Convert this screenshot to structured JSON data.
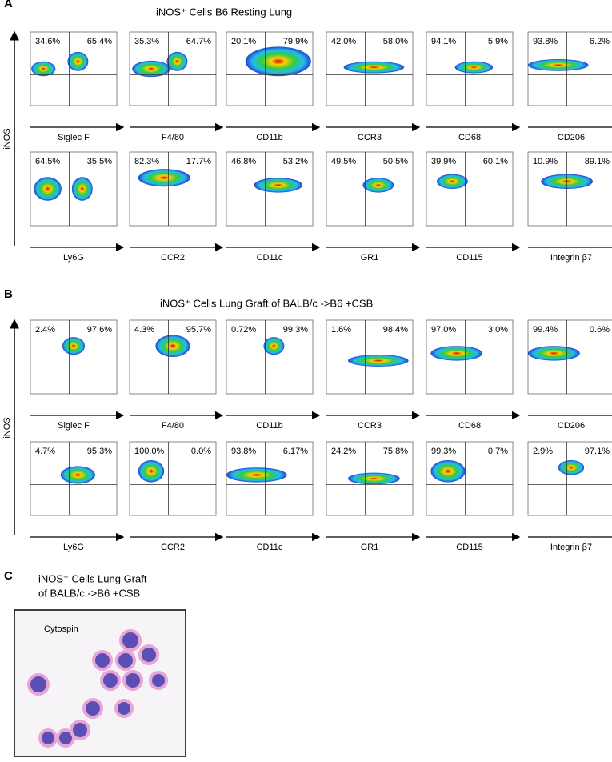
{
  "panels": [
    {
      "label": "A",
      "title": "iNOS⁺ Cells B6 Resting Lung",
      "y_label": "iNOS",
      "rows": [
        [
          {
            "marker": "Siglec F",
            "left": "34.6%",
            "right": "65.4%"
          },
          {
            "marker": "F4/80",
            "left": "35.3%",
            "right": "64.7%"
          },
          {
            "marker": "CD11b",
            "left": "20.1%",
            "right": "79.9%"
          },
          {
            "marker": "CCR3",
            "left": "42.0%",
            "right": "58.0%"
          },
          {
            "marker": "CD68",
            "left": "94.1%",
            "right": "5.9%"
          },
          {
            "marker": "CD206",
            "left": "93.8%",
            "right": "6.2%"
          }
        ],
        [
          {
            "marker": "Ly6G",
            "left": "64.5%",
            "right": "35.5%"
          },
          {
            "marker": "CCR2",
            "left": "82.3%",
            "right": "17.7%"
          },
          {
            "marker": "CD11c",
            "left": "46.8%",
            "right": "53.2%"
          },
          {
            "marker": "GR1",
            "left": "49.5%",
            "right": "50.5%"
          },
          {
            "marker": "CD115",
            "left": "39.9%",
            "right": "60.1%"
          },
          {
            "marker": "Integrin β7",
            "left": "10.9%",
            "right": "89.1%"
          }
        ]
      ]
    },
    {
      "label": "B",
      "title": "iNOS⁺ Cells Lung Graft of BALB/c ->B6 +CSB",
      "y_label": "iNOS",
      "rows": [
        [
          {
            "marker": "Siglec F",
            "left": "2.4%",
            "right": "97.6%"
          },
          {
            "marker": "F4/80",
            "left": "4.3%",
            "right": "95.7%"
          },
          {
            "marker": "CD11b",
            "left": "0.72%",
            "right": "99.3%"
          },
          {
            "marker": "CCR3",
            "left": "1.6%",
            "right": "98.4%"
          },
          {
            "marker": "CD68",
            "left": "97.0%",
            "right": "3.0%"
          },
          {
            "marker": "CD206",
            "left": "99.4%",
            "right": "0.6%"
          }
        ],
        [
          {
            "marker": "Ly6G",
            "left": "4.7%",
            "right": "95.3%"
          },
          {
            "marker": "CCR2",
            "left": "100.0%",
            "right": "0.0%"
          },
          {
            "marker": "CD11c",
            "left": "93.8%",
            "right": "6.17%"
          },
          {
            "marker": "GR1",
            "left": "24.2%",
            "right": "75.8%"
          },
          {
            "marker": "CD115",
            "left": "99.3%",
            "right": "0.7%"
          },
          {
            "marker": "Integrin β7",
            "left": "2.9%",
            "right": "97.1%"
          }
        ]
      ]
    },
    {
      "label": "C",
      "title": [
        "iNOS⁺ Cells Lung Graft",
        "of BALB/c ->B6 +CSB"
      ],
      "image_label": "Cytospin"
    }
  ]
}
